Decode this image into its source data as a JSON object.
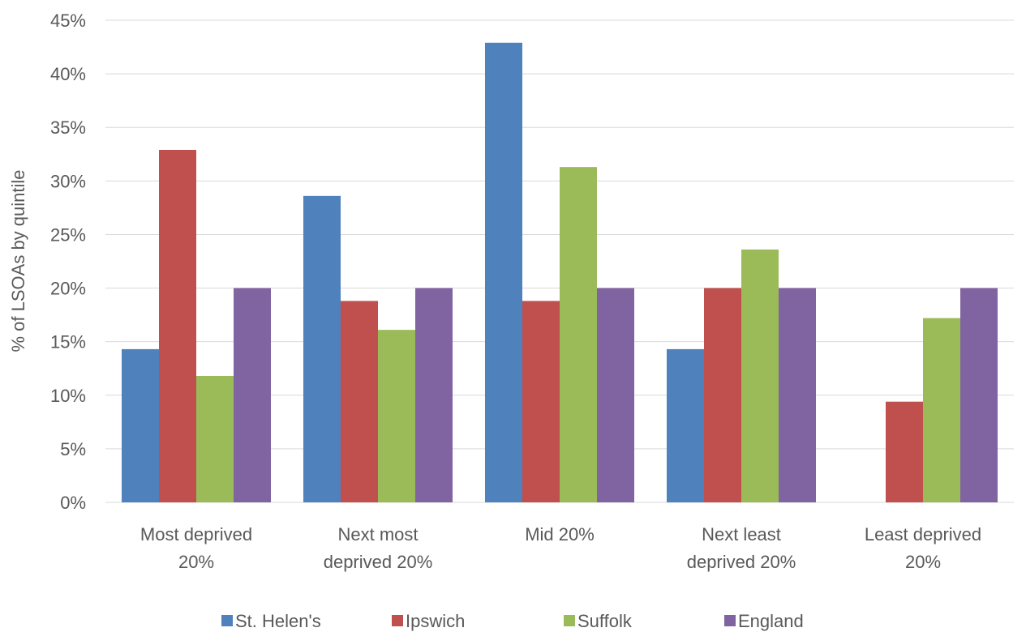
{
  "chart_data": {
    "type": "bar",
    "title": "",
    "xlabel": "",
    "ylabel": "% of LSOAs by quintile",
    "ylim": [
      0,
      45
    ],
    "yticks": [
      "0%",
      "5%",
      "10%",
      "15%",
      "20%",
      "25%",
      "30%",
      "35%",
      "40%",
      "45%"
    ],
    "y_unit": "%",
    "grid": true,
    "legend_position": "bottom",
    "categories": [
      [
        "Most deprived",
        "20%"
      ],
      [
        "Next most",
        "deprived 20%"
      ],
      [
        "Mid 20%"
      ],
      [
        "Next least",
        "deprived 20%"
      ],
      [
        "Least deprived",
        "20%"
      ]
    ],
    "series": [
      {
        "name": "St. Helen's",
        "color": "#4f81bd",
        "values": [
          14.3,
          28.6,
          42.9,
          14.3,
          0
        ]
      },
      {
        "name": "Ipswich",
        "color": "#c0504d",
        "values": [
          32.9,
          18.8,
          18.8,
          20.0,
          9.4
        ]
      },
      {
        "name": "Suffolk",
        "color": "#9bbb59",
        "values": [
          11.8,
          16.1,
          31.3,
          23.6,
          17.2
        ]
      },
      {
        "name": "England",
        "color": "#8064a2",
        "values": [
          20.0,
          20.0,
          20.0,
          20.0,
          20.0
        ]
      }
    ]
  }
}
